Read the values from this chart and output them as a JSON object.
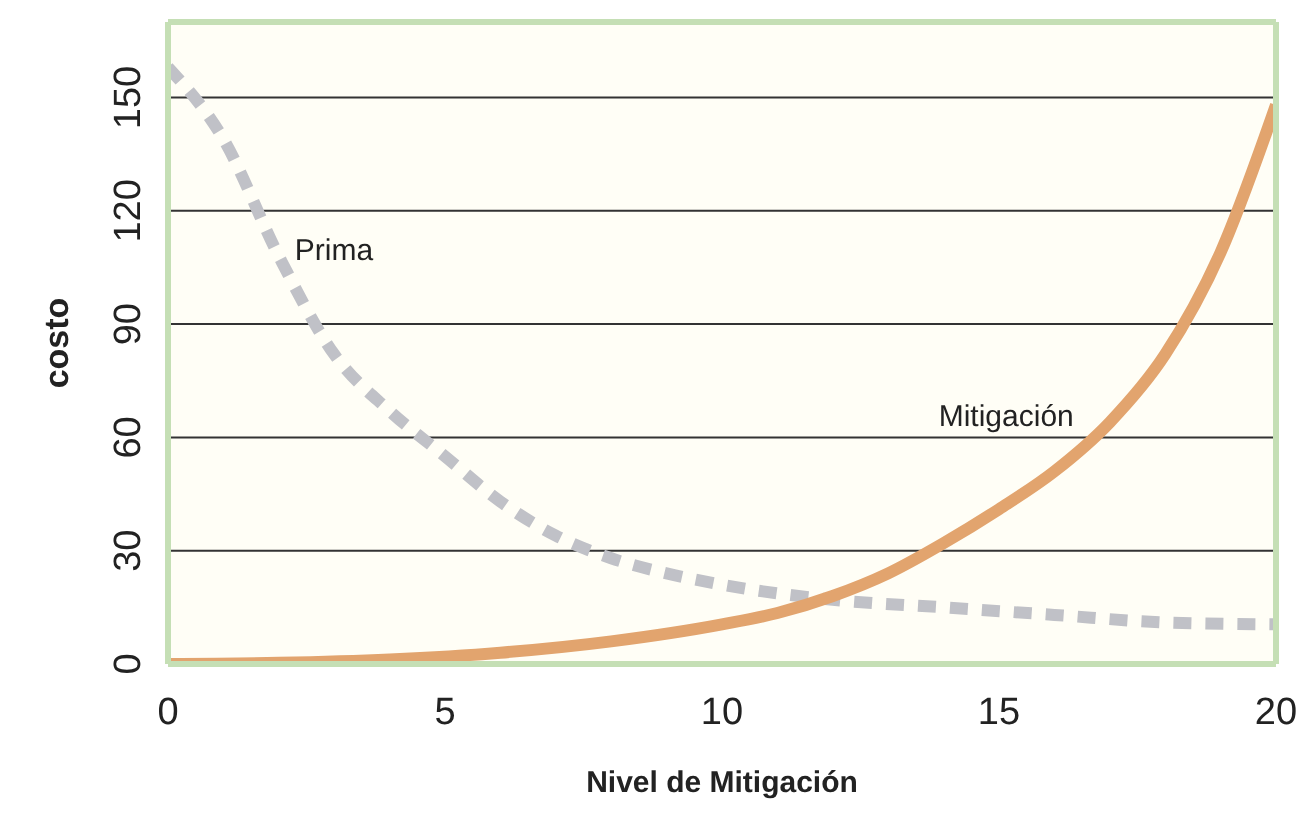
{
  "chart_data": {
    "type": "line",
    "xlabel": "Nivel de Mitigación",
    "ylabel": "costo",
    "xlim": [
      0,
      20
    ],
    "xticks": [
      0,
      5,
      10,
      15,
      20
    ],
    "ylim": [
      0,
      170
    ],
    "yticks": [
      0,
      30,
      60,
      90,
      120,
      150
    ],
    "grid": "y",
    "marker": "none",
    "series": [
      {
        "name": "Prima",
        "color": "#c0c1c7",
        "line_style": "dashed",
        "x": [
          0,
          1,
          2,
          3,
          4,
          5,
          6,
          7,
          8,
          9,
          10,
          12,
          14,
          16,
          18,
          20
        ],
        "values": [
          158,
          139,
          108,
          82,
          67,
          55,
          43,
          34,
          28,
          24,
          21,
          17,
          15,
          13,
          11,
          10.5
        ]
      },
      {
        "name": "Mitigación",
        "color": "#e2a46e",
        "line_style": "solid",
        "x": [
          0,
          2,
          4,
          6,
          8,
          10,
          11,
          12,
          13,
          14,
          15,
          16,
          17,
          18,
          19,
          20
        ],
        "values": [
          0,
          0.3,
          1.2,
          3,
          6,
          10.5,
          13.5,
          18,
          24,
          32,
          41,
          51,
          64,
          82,
          109,
          148
        ]
      }
    ]
  }
}
